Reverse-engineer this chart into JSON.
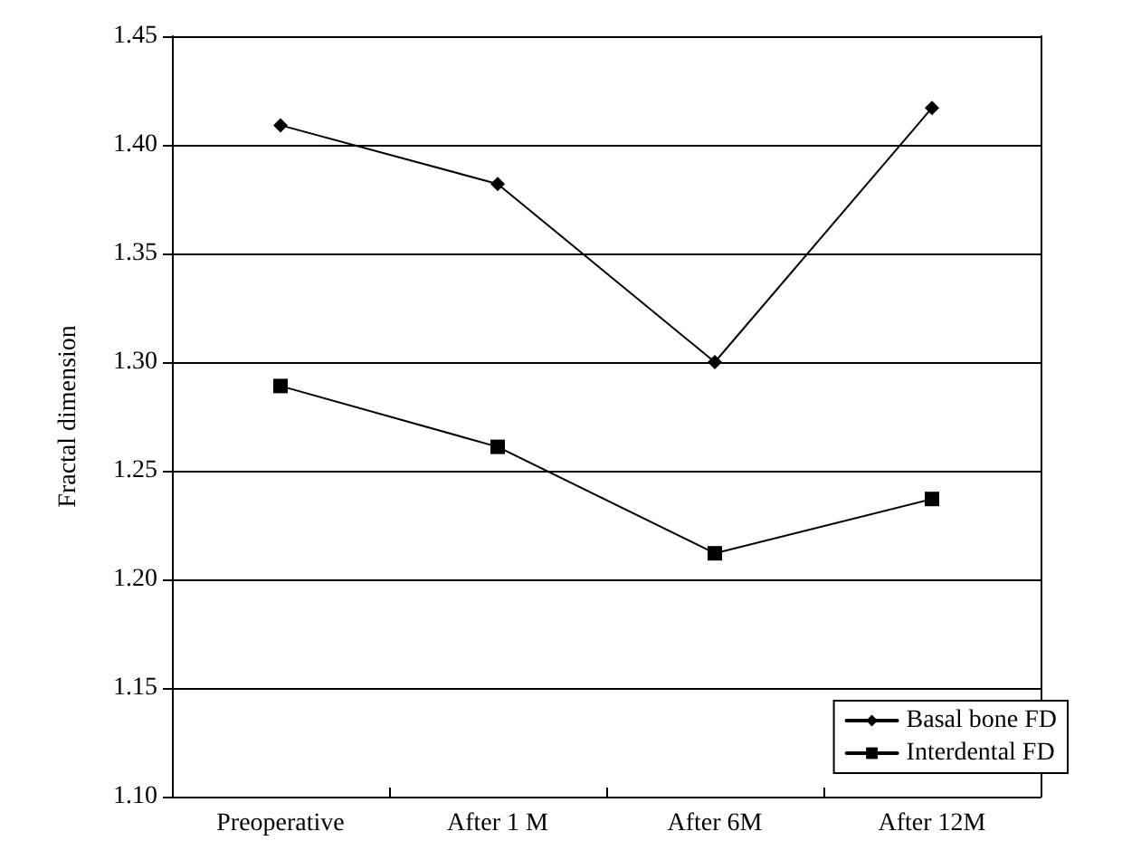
{
  "chart_data": {
    "type": "line",
    "ylabel": "Fractal dimension",
    "categories": [
      "Preoperative",
      "After 1 M",
      "After 6M",
      "After 12M"
    ],
    "series": [
      {
        "name": "Basal bone FD",
        "color": "#000000",
        "marker": "diamond",
        "values": [
          1.409,
          1.382,
          1.3,
          1.417
        ]
      },
      {
        "name": "Interdental FD",
        "color": "#000000",
        "marker": "square",
        "values": [
          1.289,
          1.261,
          1.212,
          1.237
        ]
      }
    ],
    "ylim": [
      1.1,
      1.45
    ],
    "yticks": [
      {
        "value": 1.1,
        "label": "1.10"
      },
      1.15,
      {
        "value": 1.2,
        "label": "1.20"
      },
      1.25,
      {
        "value": 1.3,
        "label": "1.30"
      },
      1.35,
      {
        "value": 1.4,
        "label": "1.40"
      },
      1.45
    ],
    "grid": "y",
    "legend": "bottom right",
    "line_style": "solid"
  }
}
